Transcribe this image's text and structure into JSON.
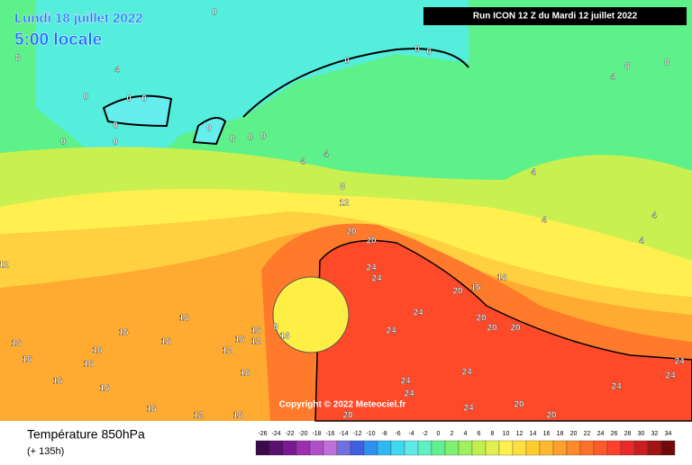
{
  "header": {
    "date": "Lundi 18 juillet 2022",
    "time": "5:00 locale",
    "run": "Run ICON 12 Z du Mardi 12 juillet 2022"
  },
  "copyright": "Copyright © 2022 Meteociel.fr",
  "footer": {
    "title": "Température 850hPa",
    "lead": "(+ 135h)"
  },
  "contour_labels": [
    0,
    8,
    4,
    0,
    0,
    0,
    0,
    0,
    0,
    0,
    0,
    0,
    0,
    0,
    0,
    0,
    4,
    4,
    4,
    8,
    8,
    4,
    4,
    4,
    4,
    8,
    12,
    20,
    20,
    24,
    24,
    24,
    24,
    20,
    16,
    16,
    20,
    20,
    20,
    24,
    24,
    24,
    24,
    20,
    24,
    24,
    24,
    28,
    20,
    12,
    16,
    16,
    16,
    16,
    16,
    16,
    16,
    16,
    16,
    16,
    12,
    16,
    12,
    16,
    16,
    12,
    8,
    16,
    16
  ],
  "scale": {
    "labels": [
      -26,
      -24,
      -22,
      -20,
      -18,
      -16,
      -14,
      -12,
      -10,
      -8,
      -6,
      -4,
      -2,
      0,
      2,
      4,
      6,
      8,
      10,
      12,
      14,
      16,
      18,
      20,
      22,
      24,
      26,
      28,
      30,
      32,
      34
    ],
    "colors": [
      "#3a0a4a",
      "#5a1070",
      "#7a1a90",
      "#9a30b0",
      "#b050c8",
      "#c070d8",
      "#7070e0",
      "#4060e0",
      "#3090f0",
      "#30b8f0",
      "#40d8f0",
      "#60e8e8",
      "#60f0c0",
      "#60f090",
      "#80f070",
      "#a0f060",
      "#c0f050",
      "#e0f050",
      "#fff050",
      "#ffe040",
      "#ffcc30",
      "#ffb830",
      "#ffa030",
      "#ff8a2a",
      "#ff702a",
      "#ff5a2a",
      "#ff402a",
      "#e82a2a",
      "#c81e1e",
      "#a01414",
      "#700a0a"
    ]
  }
}
